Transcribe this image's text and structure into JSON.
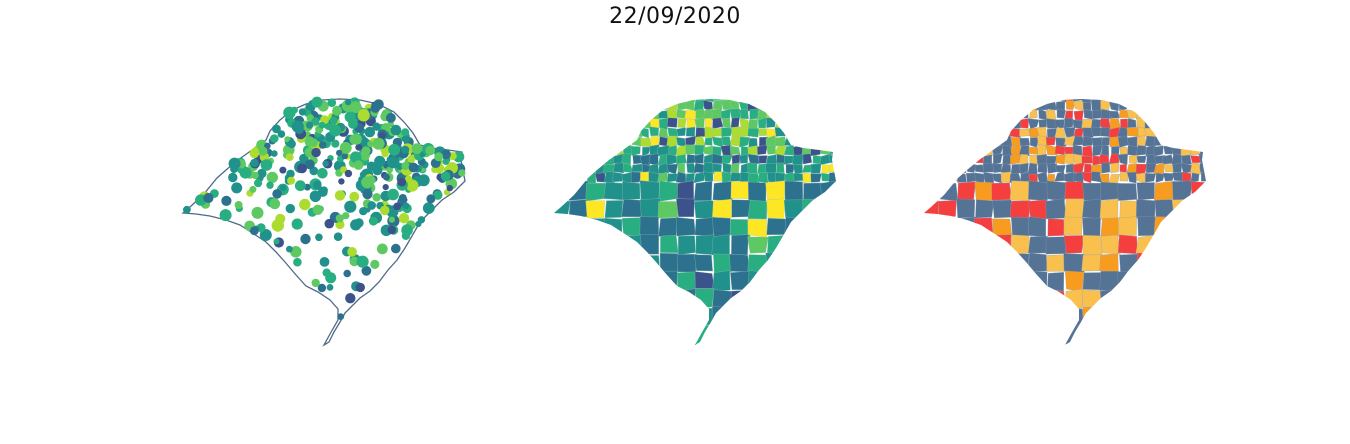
{
  "figure": {
    "title": "22/09/2020"
  },
  "colors": {
    "outline": "#4f6a88",
    "viridis": [
      "#3b528b",
      "#2c728e",
      "#21918c",
      "#28ae80",
      "#5ec962",
      "#addc30",
      "#fde725"
    ],
    "category": [
      "#557395",
      "#f9c04e",
      "#f89c20",
      "#f53f3f"
    ]
  },
  "panels": [
    {
      "name": "points-map",
      "type": "proportional-symbols"
    },
    {
      "name": "choropleth-continuous",
      "type": "choropleth"
    },
    {
      "name": "choropleth-categorical",
      "type": "choropleth"
    }
  ]
}
